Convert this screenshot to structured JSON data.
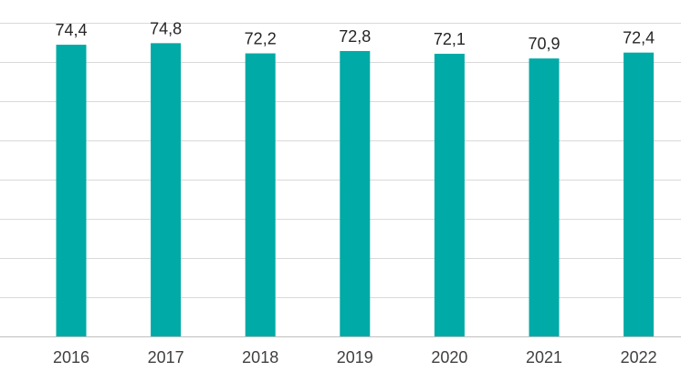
{
  "chart_data": {
    "type": "bar",
    "categories": [
      "2016",
      "2017",
      "2018",
      "2019",
      "2020",
      "2021",
      "2022"
    ],
    "values": [
      74.4,
      74.8,
      72.2,
      72.8,
      72.1,
      70.9,
      72.4
    ],
    "value_labels": [
      "74,4",
      "74,8",
      "72,2",
      "72,8",
      "72,1",
      "70,9",
      "72,4"
    ],
    "title": "",
    "xlabel": "",
    "ylabel": "",
    "ylim": [
      0,
      80
    ],
    "grid": true,
    "legend": "none",
    "colors": {
      "bar": "#00aaa6",
      "grid": "#d9d9d9",
      "axis": "#bfbfbf",
      "label": "#262626",
      "tick": "#404040"
    }
  }
}
